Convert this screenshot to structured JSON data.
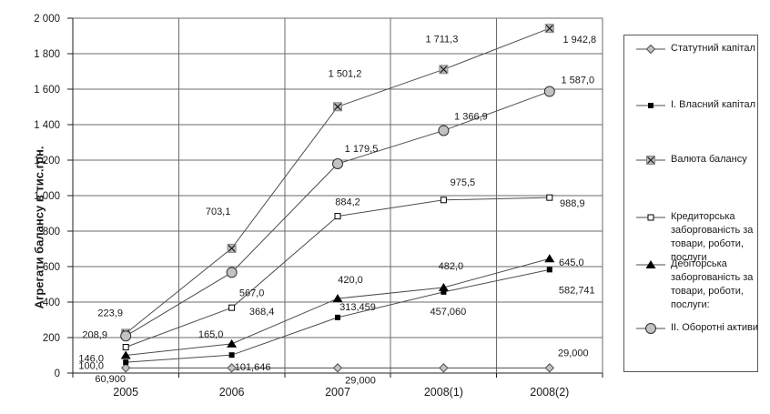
{
  "chart_data": {
    "type": "line",
    "title": "",
    "ylabel": "Агрегати балансу в тис.грн.",
    "categories": [
      "2005",
      "2006",
      "2007",
      "2008(1)",
      "2008(2)"
    ],
    "ylim": [
      0,
      2000
    ],
    "ytick_step": 200,
    "ytick_labels": [
      "0",
      "200",
      "400",
      "600",
      "800",
      "1 000",
      "1 200",
      "1 400",
      "1 600",
      "1 800",
      "2 000"
    ],
    "grid": true,
    "legend_position": "right",
    "series": [
      {
        "name": "Статутний капітал",
        "marker": "diamond-gray",
        "values": [
          29,
          29,
          29,
          29,
          29
        ],
        "point_labels": [
          null,
          null,
          "29,000",
          null,
          "29,000"
        ],
        "label_offsets": [
          null,
          null,
          [
            25,
            13
          ],
          null,
          [
            26,
            -17
          ]
        ]
      },
      {
        "name": "I. Власний капітал",
        "marker": "square-filled",
        "values": [
          60.9,
          101.646,
          313.459,
          457.06,
          582.741
        ],
        "point_labels": [
          "60,900",
          "101,646",
          "313,459",
          "457,060",
          "582,741"
        ],
        "label_offsets": [
          [
            -17,
            18
          ],
          [
            23,
            13
          ],
          [
            22,
            -12
          ],
          [
            5,
            21
          ],
          [
            30,
            22
          ]
        ]
      },
      {
        "name": "Валюта балансу",
        "marker": "x-square",
        "values": [
          223.9,
          703.1,
          1501.2,
          1711.3,
          1942.8
        ],
        "point_labels": [
          "223,9",
          "703,1",
          "1 501,2",
          "1 711,3",
          "1 942,8"
        ],
        "label_offsets": [
          [
            -17,
            -23
          ],
          [
            -15,
            -41
          ],
          [
            8,
            -37
          ],
          [
            -2,
            -34
          ],
          [
            33,
            12
          ]
        ]
      },
      {
        "name": "Кредиторська заборгованість за товари, роботи, послуги",
        "marker": "square-open",
        "values": [
          146.0,
          368.4,
          884.2,
          975.5,
          988.9
        ],
        "point_labels": [
          "146,0",
          "368,4",
          "884,2",
          "975,5",
          "988,9"
        ],
        "label_offsets": [
          [
            -38,
            12
          ],
          [
            33,
            4
          ],
          [
            11,
            -16
          ],
          [
            21,
            -20
          ],
          [
            25,
            6
          ]
        ]
      },
      {
        "name": "Дебіторська заборгованість за товари, роботи, послуги:",
        "marker": "triangle-filled",
        "values": [
          100.0,
          165.0,
          420.0,
          482.0,
          645.0
        ],
        "point_labels": [
          "100,0",
          "165,0",
          "420,0",
          "482,0",
          "645,0"
        ],
        "label_offsets": [
          [
            -38,
            11
          ],
          [
            -23,
            -11
          ],
          [
            14,
            -21
          ],
          [
            8,
            -24
          ],
          [
            24,
            4
          ]
        ]
      },
      {
        "name": "II. Оборотні активи",
        "marker": "circle-gray",
        "values": [
          208.9,
          567.0,
          1179.5,
          1366.9,
          1587.0
        ],
        "point_labels": [
          "208,9",
          "567,0",
          "1 179,5",
          "1 366,9",
          "1 587,0"
        ],
        "label_offsets": [
          [
            -34,
            -2
          ],
          [
            22,
            22
          ],
          [
            26,
            -17
          ],
          [
            30,
            -16
          ],
          [
            31,
            -13
          ]
        ]
      }
    ],
    "colors": {
      "series_line": "#4d4d4d",
      "grid": "#6b6b6b",
      "axis": "#1f1f1f",
      "text": "#1a1a1a",
      "marker_gray": "#c2c2c2",
      "marker_dark": "#000000",
      "background": "#ffffff"
    }
  }
}
